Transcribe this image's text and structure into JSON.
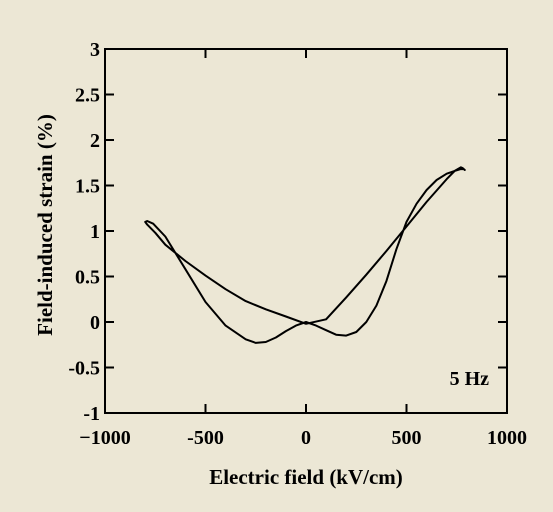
{
  "chart_data": {
    "type": "line",
    "title": "",
    "xlabel": "Electric field (kV/cm)",
    "ylabel": "Field-induced strain (%)",
    "xlim": [
      -1000,
      1000
    ],
    "ylim": [
      -1,
      3
    ],
    "x_ticks": [
      -1000,
      -500,
      0,
      500,
      1000
    ],
    "x_tick_labels": [
      "−1000",
      "-500",
      "0",
      "500",
      "1000"
    ],
    "y_ticks": [
      -1,
      -0.5,
      0,
      0.5,
      1,
      1.5,
      2,
      2.5,
      3
    ],
    "y_tick_labels": [
      "-1",
      "-0.5",
      "0",
      "0.5",
      "1",
      "1.5",
      "2",
      "2.5",
      "3"
    ],
    "grid": false,
    "legend": "none",
    "annotation": "5 Hz",
    "series": [
      {
        "color": "#000000",
        "x": [
          790,
          780,
          770,
          740,
          700,
          600,
          500,
          400,
          300,
          200,
          100,
          0,
          -100,
          -200,
          -300,
          -400,
          -500,
          -600,
          -700,
          -750,
          -790,
          -800,
          -790,
          -760,
          -700,
          -600,
          -500,
          -400,
          -300,
          -250,
          -200,
          -150,
          -100,
          -50,
          0,
          50,
          100,
          150,
          200,
          250,
          300,
          350,
          400,
          450,
          500,
          550,
          600,
          650,
          700,
          740,
          770,
          785,
          790
        ],
        "y": [
          1.67,
          1.69,
          1.7,
          1.66,
          1.57,
          1.32,
          1.05,
          0.78,
          0.52,
          0.27,
          0.03,
          -0.02,
          0.06,
          0.14,
          0.23,
          0.36,
          0.51,
          0.67,
          0.85,
          0.98,
          1.07,
          1.1,
          1.11,
          1.08,
          0.94,
          0.58,
          0.22,
          -0.04,
          -0.19,
          -0.23,
          -0.22,
          -0.17,
          -0.1,
          -0.04,
          0.0,
          -0.04,
          -0.09,
          -0.14,
          -0.15,
          -0.11,
          0.0,
          0.18,
          0.45,
          0.8,
          1.1,
          1.3,
          1.45,
          1.56,
          1.63,
          1.66,
          1.68,
          1.68,
          1.67
        ]
      }
    ]
  }
}
